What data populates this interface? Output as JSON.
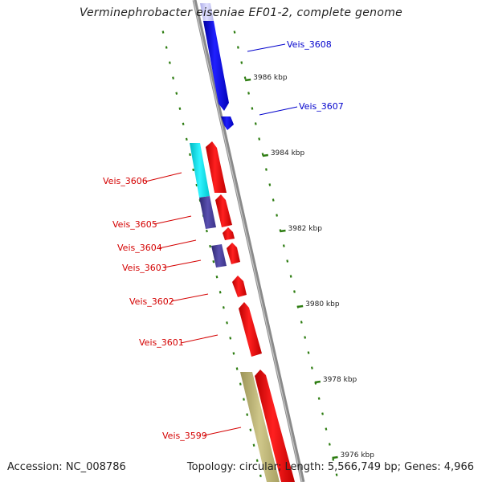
{
  "title": "Verminephrobacter eiseniae EF01-2, complete genome",
  "footer": {
    "accession": "Accession: NC_008786",
    "topology": "Topology: circular; Length: 5,566,749 bp; Genes: 4,966"
  },
  "colors": {
    "backbone": "#8a8a8a",
    "tick": "#2e7d12",
    "forward_gene": "#ff0000",
    "reverse_gene": "#0000ee",
    "label_forward": "#d40000",
    "label_reverse": "#0000cc",
    "cds_cyan": "#00e5ee",
    "cds_navy": "#4a3f9a",
    "cds_olive": "#b8b070",
    "cds_lavender": "#c8c8f0"
  },
  "kbp_ticks": [
    "3986 kbp",
    "3984 kbp",
    "3982 kbp",
    "3980 kbp",
    "3978 kbp",
    "3976 kbp"
  ],
  "gene_labels": {
    "reverse": [
      "Veis_3608",
      "Veis_3607"
    ],
    "forward": [
      "Veis_3606",
      "Veis_3605",
      "Veis_3604",
      "Veis_3603",
      "Veis_3602",
      "Veis_3601",
      "Veis_3599"
    ]
  }
}
